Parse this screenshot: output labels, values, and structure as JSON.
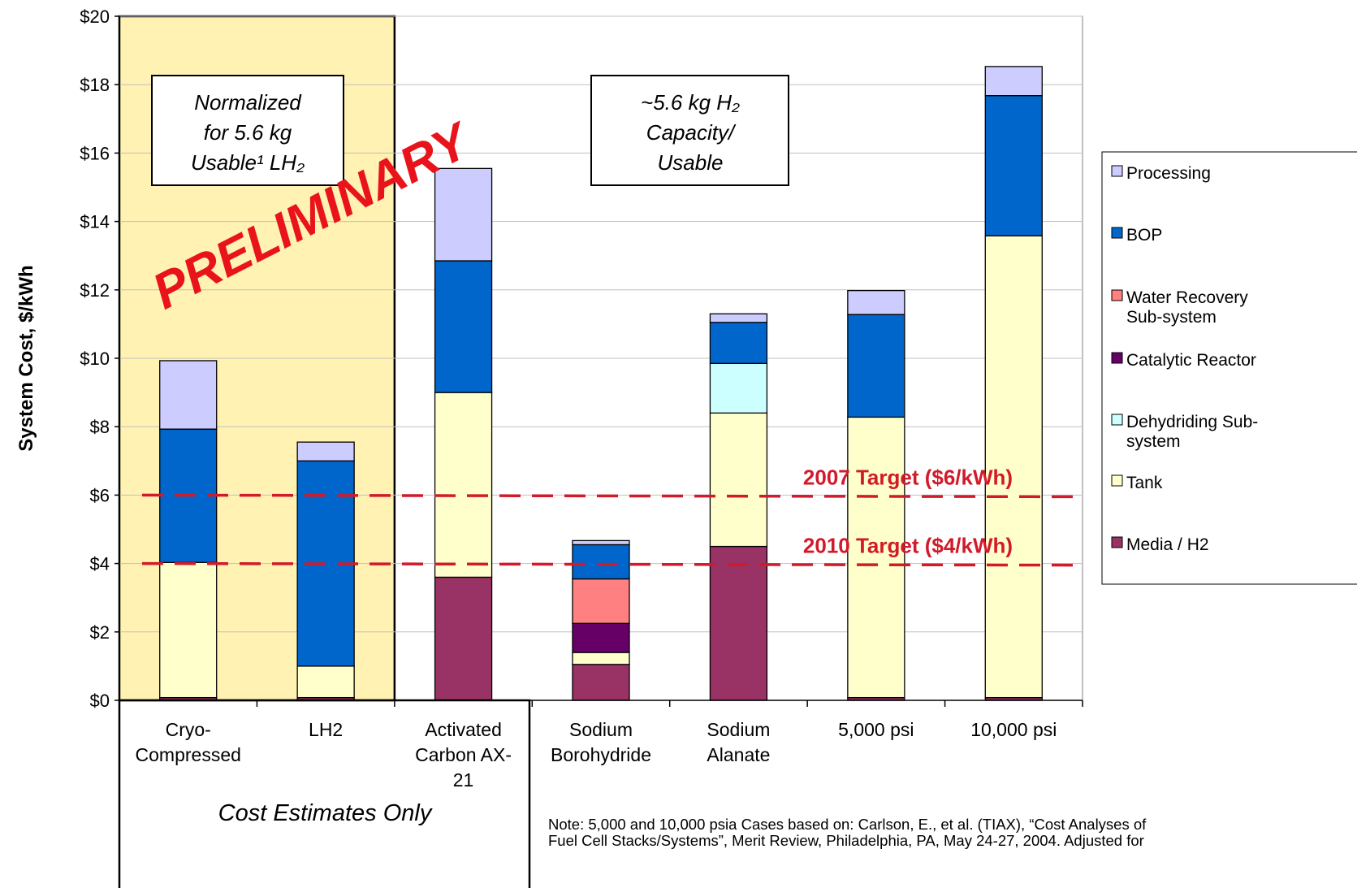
{
  "chart_data": {
    "type": "bar",
    "stacked": true,
    "ylabel": "System Cost, $/kWh",
    "ylim": [
      0,
      20
    ],
    "y_tick_step": 2,
    "y_tick_labels": [
      "$0",
      "$2",
      "$4",
      "$6",
      "$8",
      "$10",
      "$12",
      "$14",
      "$16",
      "$18",
      "$20"
    ],
    "categories": [
      [
        "Cryo-",
        "Compressed"
      ],
      [
        "LH2"
      ],
      [
        "Activated",
        "Carbon AX-",
        "21"
      ],
      [
        "Sodium",
        "Borohydride"
      ],
      [
        "Sodium",
        "Alanate"
      ],
      [
        "5,000 psi"
      ],
      [
        "10,000 psi"
      ]
    ],
    "series": [
      {
        "name": "Media / H2",
        "color": "#993366",
        "values": [
          0.08,
          0.08,
          3.6,
          1.05,
          4.5,
          0.08,
          0.08
        ]
      },
      {
        "name": "Tank",
        "color": "#ffffcc",
        "values": [
          3.95,
          0.92,
          5.4,
          0.35,
          3.9,
          8.2,
          13.5
        ]
      },
      {
        "name": "Dehydriding Sub-system",
        "color": "#ccffff",
        "values": [
          0,
          0,
          0,
          0,
          1.45,
          0,
          0
        ]
      },
      {
        "name": "Catalytic Reactor",
        "color": "#660066",
        "values": [
          0,
          0,
          0,
          0.85,
          0,
          0,
          0
        ]
      },
      {
        "name": "Water Recovery Sub-system",
        "color": "#ff8080",
        "values": [
          0,
          0,
          0,
          1.3,
          0,
          0,
          0
        ]
      },
      {
        "name": "BOP",
        "color": "#0066cc",
        "values": [
          3.9,
          6.0,
          3.85,
          1.0,
          1.2,
          3.0,
          4.1
        ]
      },
      {
        "name": "Processing",
        "color": "#ccccff",
        "values": [
          2.0,
          0.55,
          2.7,
          0.12,
          0.25,
          0.7,
          0.85
        ]
      }
    ],
    "legend_order": [
      "Processing",
      "BOP",
      "Water Recovery Sub-system",
      "Catalytic Reactor",
      "Dehydriding Sub-system",
      "Tank",
      "Media / H2"
    ],
    "legend_labels": [
      [
        "Processing"
      ],
      [
        "BOP"
      ],
      [
        "Water Recovery",
        "Sub-system"
      ],
      [
        "Catalytic Reactor"
      ],
      [
        "Dehydriding Sub-",
        "system"
      ],
      [
        "Tank"
      ],
      [
        "Media / H2"
      ]
    ],
    "legend_position": "right",
    "targets": [
      {
        "label": "2007 Target ($6/kWh)",
        "value": 6.0,
        "color": "#d11a2a"
      },
      {
        "label": "2010 Target ($4/kWh)",
        "value": 4.0,
        "color": "#d11a2a"
      }
    ],
    "highlight_region_color": "#fff2b3",
    "annotations": {
      "left_box": [
        "Normalized",
        "for 5.6 kg",
        "Usable¹ LH₂"
      ],
      "right_box": [
        "~5.6 kg H₂",
        "Capacity/",
        "Usable"
      ],
      "watermark": "PRELIMINARY",
      "cost_estimates": "Cost Estimates Only",
      "note": [
        "Note: 5,000 and 10,000 psia Cases based on: Carlson, E., et al. (TIAX), “Cost Analyses of",
        "Fuel Cell Stacks/Systems”, Merit Review, Philadelphia, PA, May 24-27, 2004. Adjusted for"
      ]
    }
  }
}
